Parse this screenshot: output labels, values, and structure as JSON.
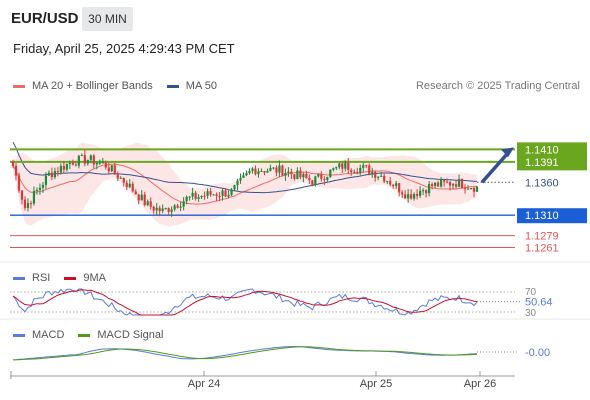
{
  "header": {
    "pair": "EUR/USD",
    "timeframe": "30 MIN",
    "datetime": "Friday, April 25, 2025 4:29:43 PM CET"
  },
  "legend": {
    "bb_label": "MA 20 + Bollinger Bands",
    "ma50_label": "MA 50",
    "copyright": "Research © 2025 Trading Central"
  },
  "colors": {
    "bull": "#1f8a3a",
    "bear": "#d63b3b",
    "ma20": "#f06a6a",
    "ma50": "#34508f",
    "band_fill": "#fde2e2",
    "resistance": "#6aa61e",
    "support": "#1a5fd6",
    "weak_support": "#e25555",
    "rsi": "#5b7bd5",
    "rsi_ma": "#c8102e",
    "macd": "#5b7bd5",
    "macd_signal": "#4f9a1a"
  },
  "chart_data": {
    "type": "candlestick",
    "symbol": "EUR/USD",
    "interval": "30 MIN",
    "x_labels": [
      "Apr 24",
      "Apr 25",
      "Apr 26"
    ],
    "price_levels": [
      {
        "value": 1.141,
        "label": "1.1410",
        "kind": "resistance"
      },
      {
        "value": 1.1391,
        "label": "1.1391",
        "kind": "resistance"
      },
      {
        "value": 1.136,
        "label": "1.1360",
        "kind": "current"
      },
      {
        "value": 1.131,
        "label": "1.1310",
        "kind": "support"
      },
      {
        "value": 1.1279,
        "label": "1.1279",
        "kind": "support"
      },
      {
        "value": 1.1261,
        "label": "1.1261",
        "kind": "support"
      }
    ],
    "ylim": [
      1.1245,
      1.1485
    ],
    "indicators": {
      "rsi": {
        "label": "RSI",
        "ma_label": "9MA",
        "value_label": "50.64",
        "levels": [
          "70",
          "30"
        ]
      },
      "macd": {
        "label": "MACD",
        "signal_label": "MACD Signal",
        "value_label": "-0.00"
      }
    }
  }
}
